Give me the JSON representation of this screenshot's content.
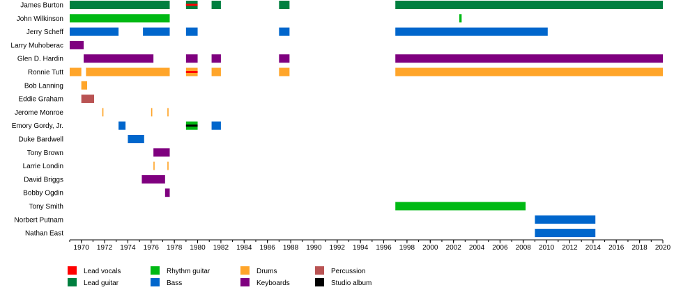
{
  "chart_data": {
    "type": "timeline",
    "x_axis": {
      "min": 1970,
      "max": 2020,
      "ticks": [
        1970,
        1972,
        1974,
        1976,
        1978,
        1980,
        1982,
        1984,
        1986,
        1988,
        1990,
        1992,
        1994,
        1996,
        1998,
        2000,
        2002,
        2004,
        2006,
        2008,
        2010,
        2012,
        2014,
        2016,
        2018,
        2020
      ]
    },
    "grid": false,
    "legend_placement": "bottom-left",
    "roles": [
      {
        "key": "lead_vocals",
        "label": "Lead vocals",
        "color": "#ff0000"
      },
      {
        "key": "lead_guitar",
        "label": "Lead guitar",
        "color": "#007f3f"
      },
      {
        "key": "rhythm_guitar",
        "label": "Rhythm guitar",
        "color": "#00b914"
      },
      {
        "key": "bass",
        "label": "Bass",
        "color": "#0066cc"
      },
      {
        "key": "drums",
        "label": "Drums",
        "color": "#ffa52a"
      },
      {
        "key": "keyboards",
        "label": "Keyboards",
        "color": "#7f007f"
      },
      {
        "key": "percussion",
        "label": "Percussion",
        "color": "#b95353"
      },
      {
        "key": "studio_album",
        "label": "Studio album",
        "color": "#000000"
      }
    ],
    "members": [
      {
        "name": "James Burton",
        "periods": [
          {
            "role": "lead_guitar",
            "start": 1969.0,
            "end": 1977.6
          },
          {
            "role": "lead_guitar",
            "start": 1979.0,
            "end": 1980.0,
            "secondary": "lead_vocals"
          },
          {
            "role": "lead_guitar",
            "start": 1981.2,
            "end": 1982.0
          },
          {
            "role": "lead_guitar",
            "start": 1987.0,
            "end": 1987.9
          },
          {
            "role": "lead_guitar",
            "start": 1997.0,
            "end": 2020.0
          }
        ]
      },
      {
        "name": "John Wilkinson",
        "periods": [
          {
            "role": "rhythm_guitar",
            "start": 1969.0,
            "end": 1977.6
          },
          {
            "role": "rhythm_guitar",
            "start": 2002.5,
            "end": 2002.7
          }
        ]
      },
      {
        "name": "Jerry Scheff",
        "periods": [
          {
            "role": "bass",
            "start": 1969.0,
            "end": 1973.2
          },
          {
            "role": "bass",
            "start": 1975.3,
            "end": 1977.6
          },
          {
            "role": "bass",
            "start": 1979.0,
            "end": 1980.0
          },
          {
            "role": "bass",
            "start": 1987.0,
            "end": 1987.9
          },
          {
            "role": "bass",
            "start": 1997.0,
            "end": 2010.1
          }
        ]
      },
      {
        "name": "Larry Muhoberac",
        "periods": [
          {
            "role": "keyboards",
            "start": 1969.0,
            "end": 1970.2
          }
        ]
      },
      {
        "name": "Glen D. Hardin",
        "periods": [
          {
            "role": "keyboards",
            "start": 1970.2,
            "end": 1976.2
          },
          {
            "role": "keyboards",
            "start": 1979.0,
            "end": 1980.0
          },
          {
            "role": "keyboards",
            "start": 1981.2,
            "end": 1982.0
          },
          {
            "role": "keyboards",
            "start": 1987.0,
            "end": 1987.9
          },
          {
            "role": "keyboards",
            "start": 1997.0,
            "end": 2020.0
          }
        ]
      },
      {
        "name": "Ronnie Tutt",
        "periods": [
          {
            "role": "drums",
            "start": 1969.0,
            "end": 1970.0
          },
          {
            "role": "drums",
            "start": 1970.4,
            "end": 1977.6
          },
          {
            "role": "drums",
            "start": 1979.0,
            "end": 1980.0,
            "secondary": "lead_vocals"
          },
          {
            "role": "drums",
            "start": 1981.2,
            "end": 1982.0
          },
          {
            "role": "drums",
            "start": 1987.0,
            "end": 1987.9
          },
          {
            "role": "drums",
            "start": 1997.0,
            "end": 2020.0
          }
        ]
      },
      {
        "name": "Bob Lanning",
        "periods": [
          {
            "role": "drums",
            "start": 1970.0,
            "end": 1970.5
          }
        ]
      },
      {
        "name": "Eddie Graham",
        "periods": [
          {
            "role": "percussion",
            "start": 1970.0,
            "end": 1971.1
          }
        ]
      },
      {
        "name": "Jerome Monroe",
        "periods": [
          {
            "role": "drums",
            "start": 1971.8,
            "end": 1971.9
          },
          {
            "role": "drums",
            "start": 1976.0,
            "end": 1976.1
          },
          {
            "role": "drums",
            "start": 1977.4,
            "end": 1977.5
          }
        ]
      },
      {
        "name": "Emory Gordy, Jr.",
        "periods": [
          {
            "role": "bass",
            "start": 1973.2,
            "end": 1973.8
          },
          {
            "role": "rhythm_guitar",
            "start": 1979.0,
            "end": 1980.0,
            "secondary": "studio_album"
          },
          {
            "role": "bass",
            "start": 1981.2,
            "end": 1982.0
          }
        ]
      },
      {
        "name": "Duke Bardwell",
        "periods": [
          {
            "role": "bass",
            "start": 1974.0,
            "end": 1975.4
          }
        ]
      },
      {
        "name": "Tony Brown",
        "periods": [
          {
            "role": "keyboards",
            "start": 1976.2,
            "end": 1977.6
          }
        ]
      },
      {
        "name": "Larrie Londin",
        "periods": [
          {
            "role": "drums",
            "start": 1976.2,
            "end": 1976.3
          },
          {
            "role": "drums",
            "start": 1977.4,
            "end": 1977.5
          }
        ]
      },
      {
        "name": "David Briggs",
        "periods": [
          {
            "role": "keyboards",
            "start": 1975.2,
            "end": 1977.2
          }
        ]
      },
      {
        "name": "Bobby Ogdin",
        "periods": [
          {
            "role": "keyboards",
            "start": 1977.2,
            "end": 1977.6
          }
        ]
      },
      {
        "name": "Tony Smith",
        "periods": [
          {
            "role": "rhythm_guitar",
            "start": 1997.0,
            "end": 2008.2
          }
        ]
      },
      {
        "name": "Norbert Putnam",
        "periods": [
          {
            "role": "bass",
            "start": 2009.0,
            "end": 2014.2
          }
        ]
      },
      {
        "name": "Nathan East",
        "periods": [
          {
            "role": "bass",
            "start": 2009.0,
            "end": 2014.2
          }
        ]
      }
    ]
  }
}
